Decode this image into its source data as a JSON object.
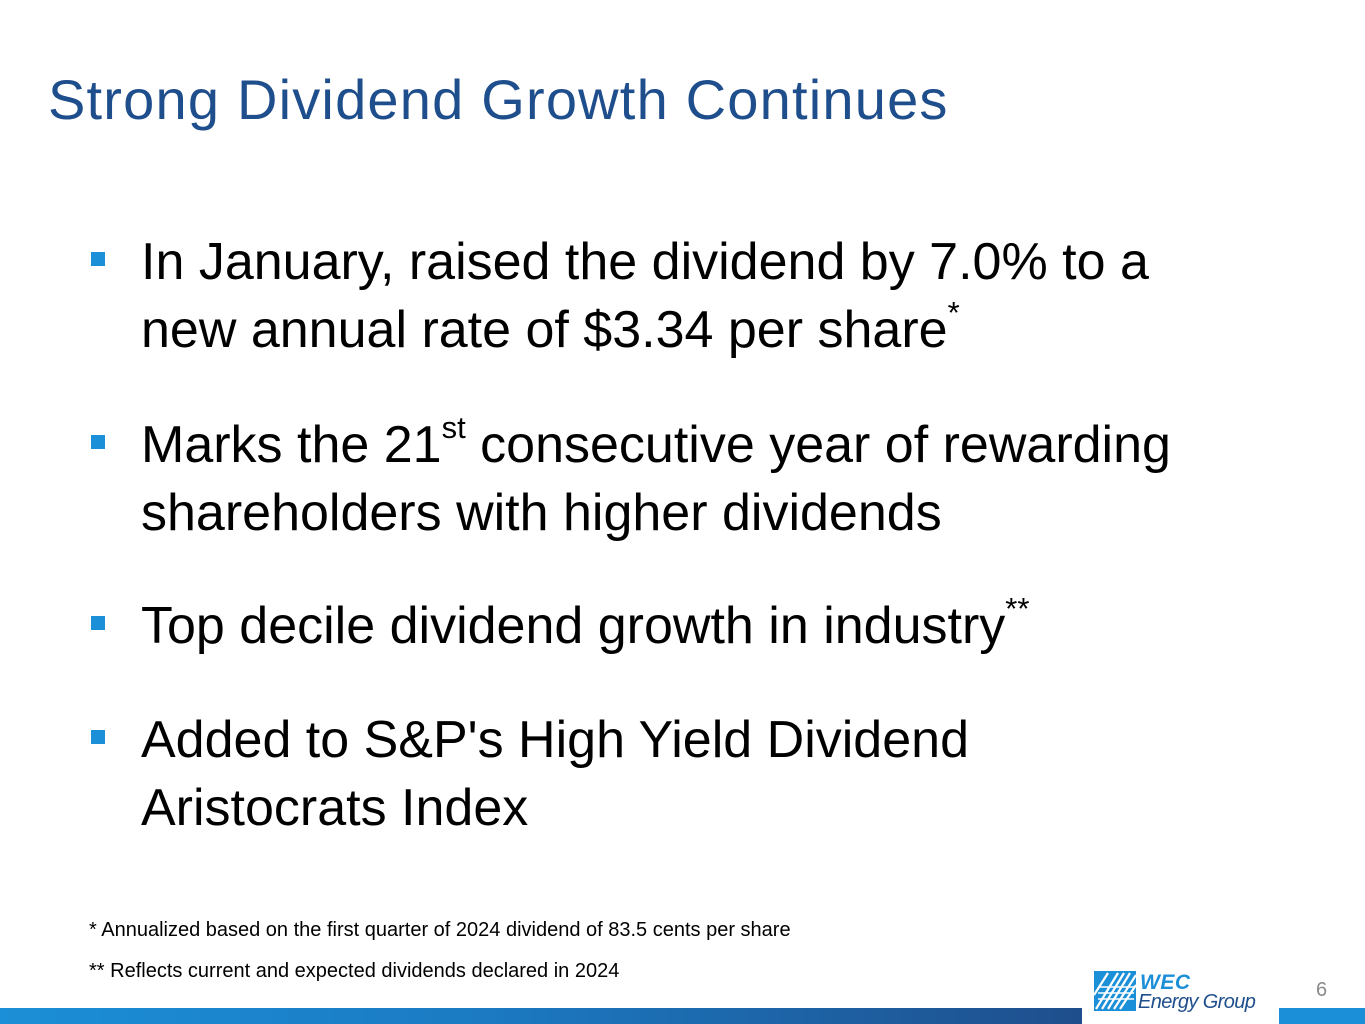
{
  "slide": {
    "title": "Strong Dividend Growth Continues",
    "bullets": [
      {
        "line1": "In January, raised the dividend by 7.0% to a",
        "line2": "new annual rate of $3.34 per share",
        "note": "*"
      },
      {
        "prefix": "Marks the 21",
        "ordinal": "st",
        "line1_rest": " consecutive year of rewarding",
        "line2": "shareholders with higher dividends"
      },
      {
        "line1": "Top decile dividend growth in industry",
        "note": "**"
      },
      {
        "line1": "Added to S&P's High Yield Dividend",
        "line2": "Aristocrats Index"
      }
    ],
    "footnotes": [
      "* Annualized based on the first quarter of 2024 dividend of 83.5 cents per share",
      "** Reflects current and expected dividends declared in 2024"
    ],
    "page_number": "6"
  },
  "logo": {
    "line1": "WEC",
    "line2": "Energy Group"
  },
  "colors": {
    "title": "#1f4e8c",
    "bullet_marker": "#1b8fd7",
    "bar_light": "#1b8fd7",
    "bar_dark": "#1f4e8c",
    "page_number": "#8a8a8a"
  }
}
